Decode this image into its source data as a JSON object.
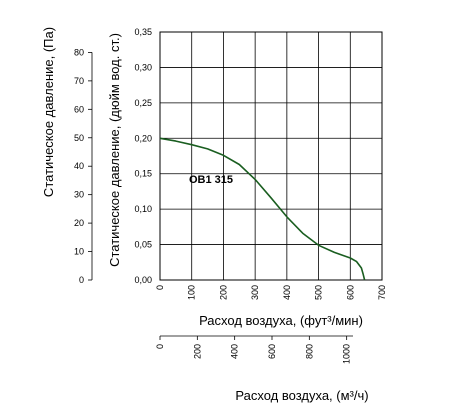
{
  "chart_data": {
    "type": "line",
    "series": [
      {
        "name": "ОВ1 315",
        "color": "#1a5e20",
        "x": [
          0,
          50,
          100,
          150,
          200,
          250,
          300,
          350,
          400,
          450,
          500,
          550,
          600,
          620,
          635,
          640,
          645
        ],
        "y": [
          0.2,
          0.196,
          0.191,
          0.185,
          0.176,
          0.163,
          0.142,
          0.116,
          0.089,
          0.066,
          0.049,
          0.039,
          0.031,
          0.026,
          0.017,
          0.009,
          0.0
        ]
      }
    ],
    "annotation": "ОВ1 315",
    "x_axis": {
      "label": "Расход воздуха, (фут³/мин)",
      "range": [
        0,
        700
      ],
      "ticks": [
        "0",
        "100",
        "200",
        "300",
        "400",
        "500",
        "600",
        "700"
      ]
    },
    "x2_axis": {
      "label": "Расход воздуха, (м³/ч)",
      "range": [
        0,
        1189.3
      ],
      "ticks": [
        "0",
        "200",
        "400",
        "600",
        "800",
        "1000"
      ]
    },
    "y_axis": {
      "label": "Статическое давление, (дюйм вод. ст.)",
      "range": [
        0,
        0.35
      ],
      "ticks": [
        "0,00",
        "0,05",
        "0,10",
        "0,15",
        "0,20",
        "0,25",
        "0,30",
        "0,35"
      ]
    },
    "y2_axis": {
      "label": "Статическое давление, (Па)",
      "range": [
        0,
        87.18
      ],
      "ticks": [
        "0",
        "10",
        "20",
        "30",
        "40",
        "50",
        "60",
        "70",
        "80"
      ]
    },
    "grid": true
  }
}
